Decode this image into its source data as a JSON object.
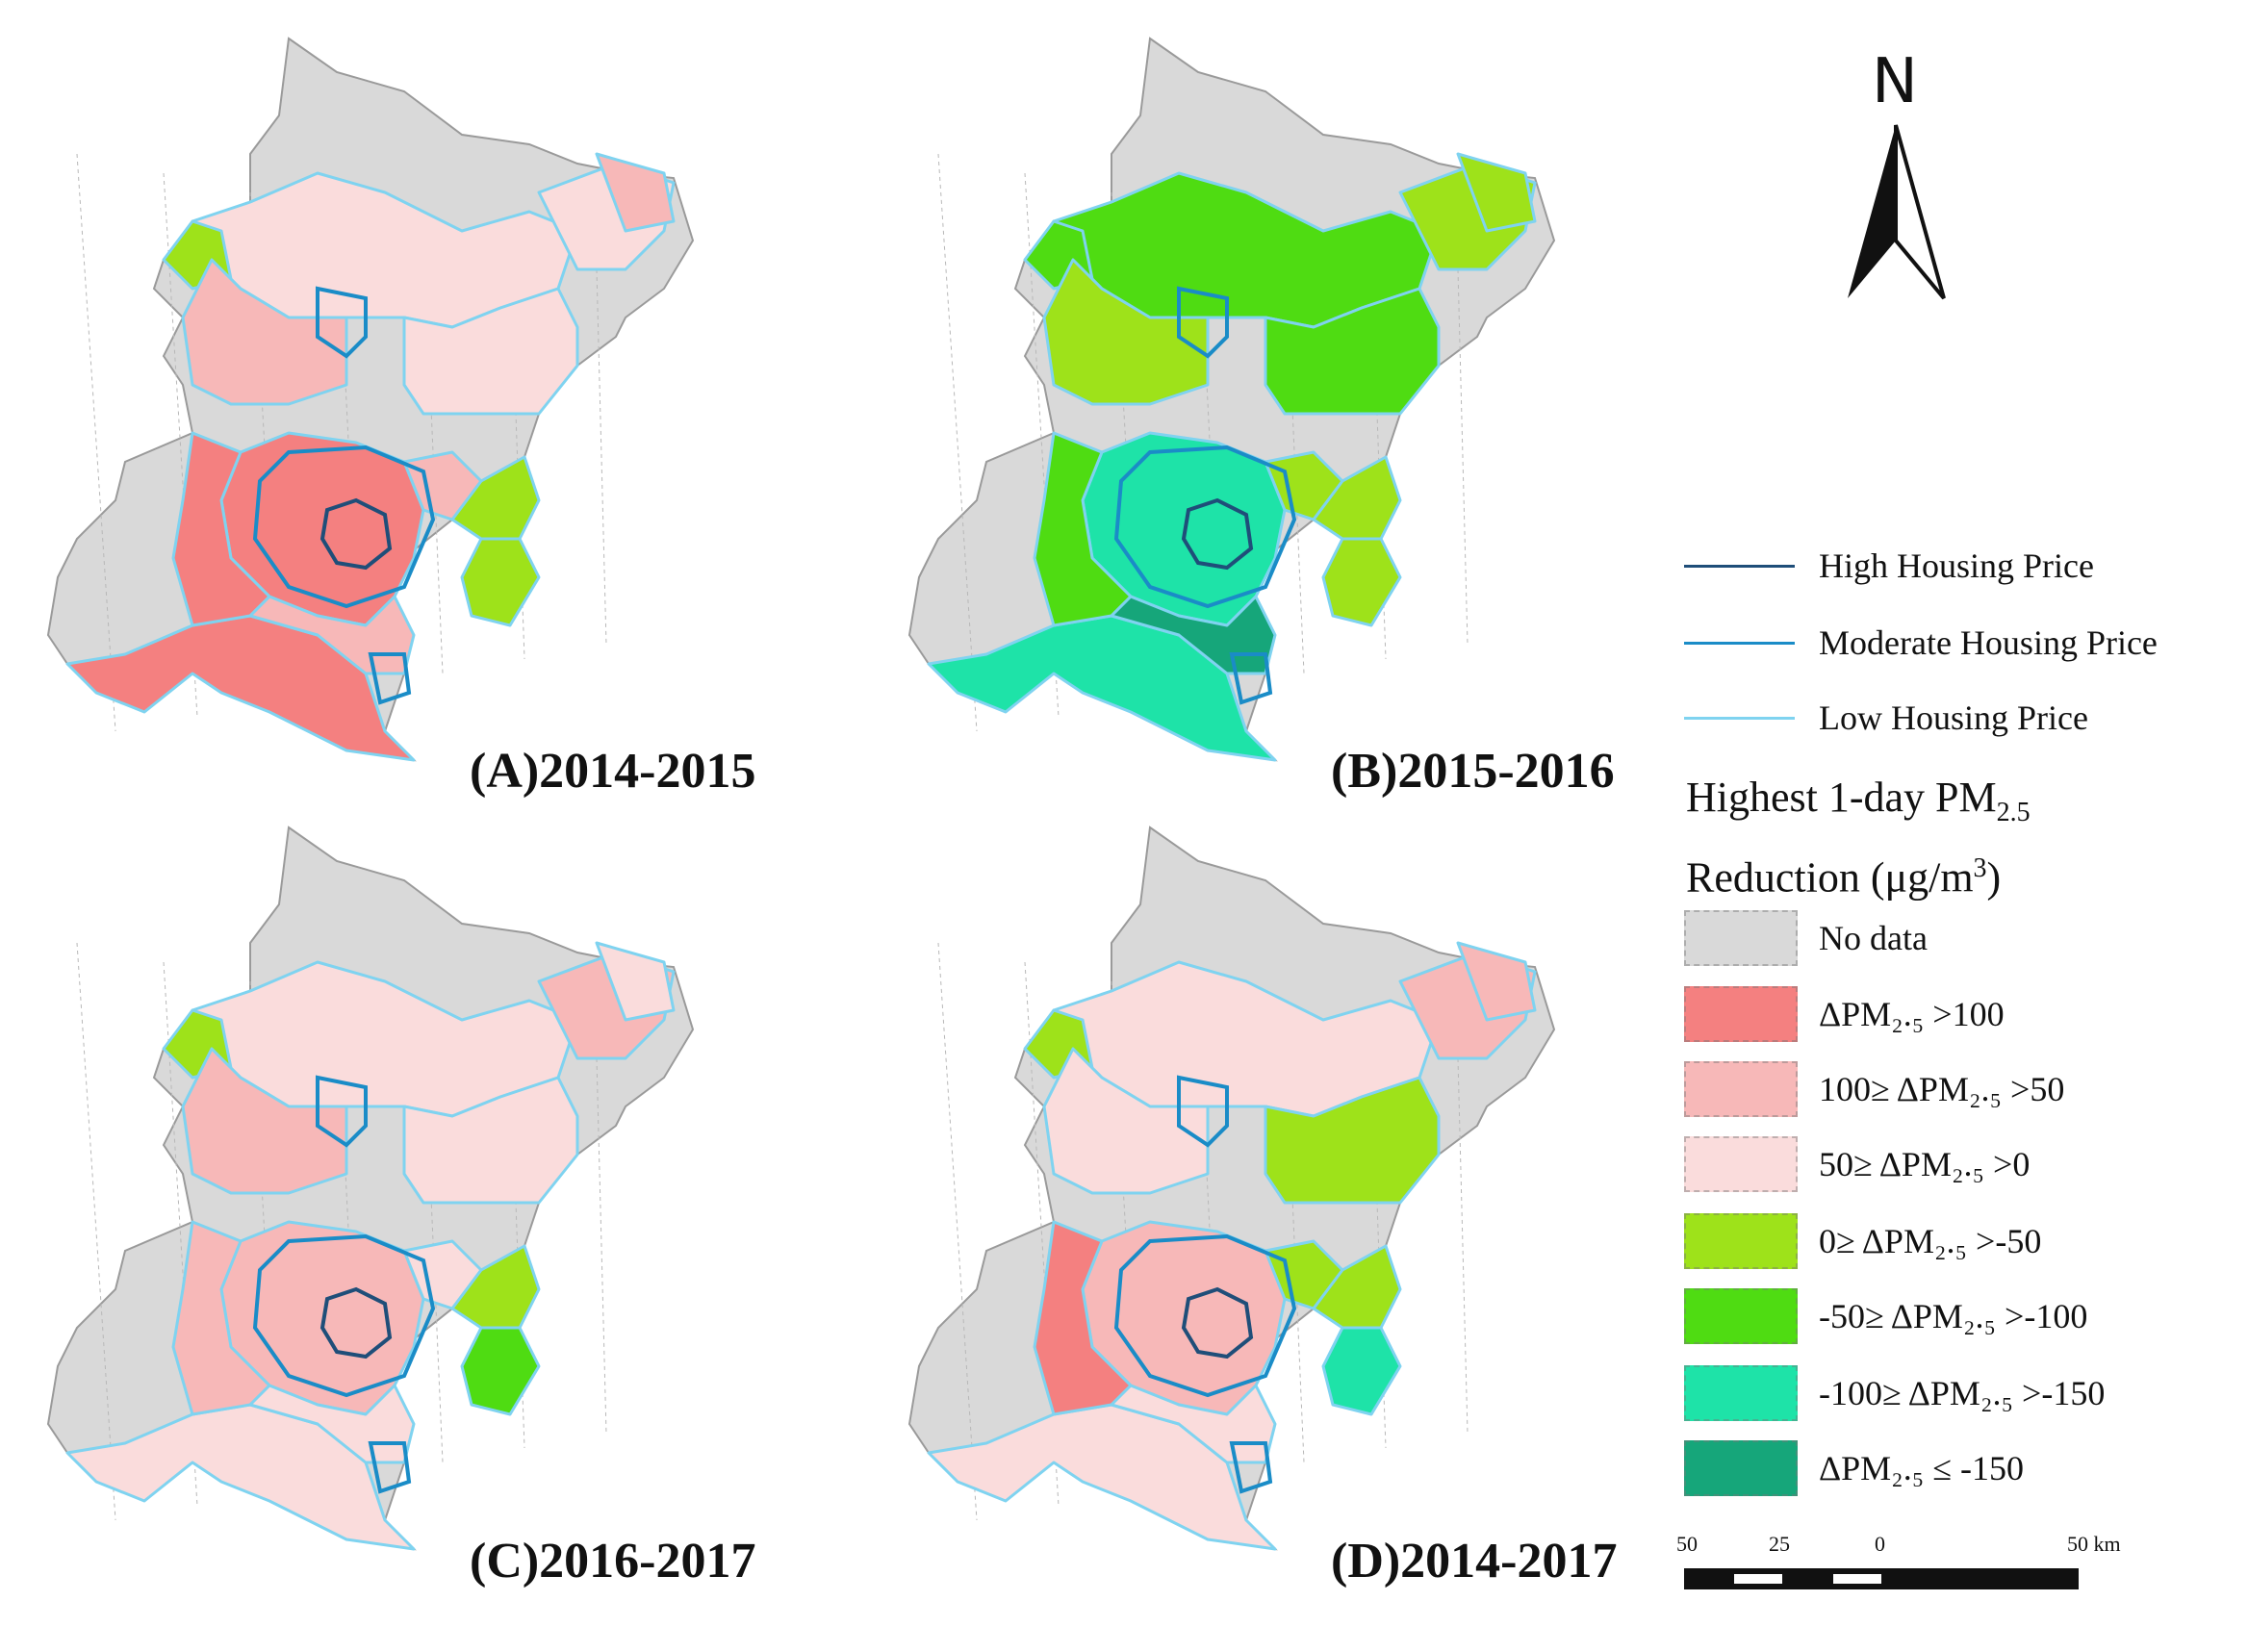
{
  "panels": [
    {
      "caption": "(A)2014-2015"
    },
    {
      "caption": "(B)2015-2016"
    },
    {
      "caption": "(C)2016-2017"
    },
    {
      "caption": "(D)2014-2017"
    }
  ],
  "north_arrow": {
    "label": "N"
  },
  "housing_legend": [
    {
      "label": "High Housing Price",
      "color": "#1f4e79"
    },
    {
      "label": "Moderate Housing Price",
      "color": "#1a8cc7"
    },
    {
      "label": "Low Housing Price",
      "color": "#7fd3f0"
    }
  ],
  "legend_title": {
    "line1": "Highest 1-day PM",
    "line1_sub": "2.5",
    "line2": "Reduction (μg/m",
    "line2_sup": "3",
    "line2_end": ")"
  },
  "class_legend": [
    {
      "label": "No data",
      "color": "#d9d9d9"
    },
    {
      "label": "ΔPM₂.₅ >100",
      "color": "#f48080"
    },
    {
      "label": "100≥ ΔPM₂.₅ >50",
      "color": "#f7b8b8"
    },
    {
      "label": "50≥ ΔPM₂.₅ >0",
      "color": "#fadcdc"
    },
    {
      "label": "0≥ ΔPM₂.₅ >-50",
      "color": "#9ee21a"
    },
    {
      "label": "-50≥ ΔPM₂.₅ >-100",
      "color": "#4fdc12"
    },
    {
      "label": "-100≥ ΔPM₂.₅ >-150",
      "color": "#1ee3a8"
    },
    {
      "label": "ΔPM₂.₅ ≤ -150",
      "color": "#16a67a"
    }
  ],
  "scale_bar": {
    "labels": [
      "50",
      "25",
      "0",
      "50 km"
    ]
  }
}
